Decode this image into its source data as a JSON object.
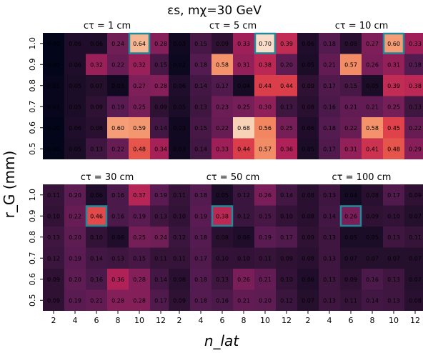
{
  "figure": {
    "title": "εs, mχ=30 GeV",
    "xlabel": "n_lat",
    "ylabel": "r_G (mm)"
  },
  "chart_data": [
    {
      "type": "heatmap",
      "title": "cτ = 1 cm",
      "x": [
        "2",
        "4",
        "6",
        "8",
        "10",
        "12"
      ],
      "y": [
        "1.0",
        "0.9",
        "0.8",
        "0.7",
        "0.6",
        "0.5"
      ],
      "values": [
        [
          0.0,
          0.06,
          0.06,
          0.24,
          0.64,
          0.28
        ],
        [
          0.0,
          0.06,
          0.32,
          0.22,
          0.32,
          0.15
        ],
        [
          0.01,
          0.05,
          0.07,
          0.03,
          0.27,
          0.28
        ],
        [
          0.01,
          0.05,
          0.09,
          0.19,
          0.25,
          0.09
        ],
        [
          0.0,
          0.06,
          0.08,
          0.6,
          0.59,
          0.14
        ],
        [
          0.0,
          0.05,
          0.13,
          0.22,
          0.48,
          0.34
        ]
      ],
      "highlight": [
        0,
        4
      ],
      "vmin": 0,
      "vmax": 0.72
    },
    {
      "type": "heatmap",
      "title": "cτ = 5 cm",
      "x": [
        "2",
        "4",
        "6",
        "8",
        "10",
        "12"
      ],
      "y": [
        "1.0",
        "0.9",
        "0.8",
        "0.7",
        "0.6",
        "0.5"
      ],
      "values": [
        [
          0.03,
          0.15,
          0.09,
          0.33,
          0.7,
          0.39
        ],
        [
          0.02,
          0.18,
          0.58,
          0.31,
          0.38,
          0.2
        ],
        [
          0.06,
          0.14,
          0.17,
          0.04,
          0.44,
          0.44
        ],
        [
          0.05,
          0.13,
          0.23,
          0.25,
          0.3,
          0.13
        ],
        [
          0.03,
          0.15,
          0.22,
          0.68,
          0.56,
          0.25
        ],
        [
          0.03,
          0.14,
          0.33,
          0.44,
          0.57,
          0.36
        ]
      ],
      "highlight": [
        0,
        4
      ],
      "vmin": 0,
      "vmax": 0.72
    },
    {
      "type": "heatmap",
      "title": "cτ = 10 cm",
      "x": [
        "2",
        "4",
        "6",
        "8",
        "10",
        "12"
      ],
      "y": [
        "1.0",
        "0.9",
        "0.8",
        "0.7",
        "0.6",
        "0.5"
      ],
      "values": [
        [
          0.06,
          0.18,
          0.08,
          0.27,
          0.6,
          0.33
        ],
        [
          0.05,
          0.21,
          0.57,
          0.26,
          0.31,
          0.18
        ],
        [
          0.09,
          0.17,
          0.15,
          0.05,
          0.39,
          0.38
        ],
        [
          0.08,
          0.16,
          0.21,
          0.21,
          0.25,
          0.13
        ],
        [
          0.06,
          0.18,
          0.22,
          0.58,
          0.45,
          0.22
        ],
        [
          0.05,
          0.17,
          0.31,
          0.41,
          0.48,
          0.29
        ]
      ],
      "highlight": [
        0,
        4
      ],
      "vmin": 0,
      "vmax": 0.72
    },
    {
      "type": "heatmap",
      "title": "cτ = 30 cm",
      "x": [
        "2",
        "4",
        "6",
        "8",
        "10",
        "12"
      ],
      "y": [
        "1.0",
        "0.9",
        "0.8",
        "0.7",
        "0.6",
        "0.5"
      ],
      "values": [
        [
          0.11,
          0.2,
          0.06,
          0.16,
          0.37,
          0.19
        ],
        [
          0.1,
          0.22,
          0.46,
          0.16,
          0.19,
          0.13
        ],
        [
          0.13,
          0.2,
          0.1,
          0.06,
          0.25,
          0.24
        ],
        [
          0.12,
          0.19,
          0.14,
          0.13,
          0.15,
          0.11
        ],
        [
          0.09,
          0.2,
          0.16,
          0.36,
          0.28,
          0.14
        ],
        [
          0.09,
          0.19,
          0.21,
          0.28,
          0.28,
          0.17
        ]
      ],
      "highlight": [
        1,
        2
      ],
      "vmin": 0,
      "vmax": 0.72
    },
    {
      "type": "heatmap",
      "title": "cτ = 50 cm",
      "x": [
        "2",
        "4",
        "6",
        "8",
        "10",
        "12"
      ],
      "y": [
        "1.0",
        "0.9",
        "0.8",
        "0.7",
        "0.6",
        "0.5"
      ],
      "values": [
        [
          0.11,
          0.18,
          0.05,
          0.12,
          0.26,
          0.14
        ],
        [
          0.1,
          0.19,
          0.38,
          0.12,
          0.15,
          0.1
        ],
        [
          0.12,
          0.18,
          0.08,
          0.06,
          0.19,
          0.17
        ],
        [
          0.11,
          0.17,
          0.1,
          0.1,
          0.11,
          0.09
        ],
        [
          0.08,
          0.18,
          0.13,
          0.26,
          0.21,
          0.1
        ],
        [
          0.09,
          0.18,
          0.16,
          0.21,
          0.2,
          0.12
        ]
      ],
      "highlight": [
        1,
        2
      ],
      "vmin": 0,
      "vmax": 0.72
    },
    {
      "type": "heatmap",
      "title": "cτ = 100 cm",
      "x": [
        "2",
        "4",
        "6",
        "8",
        "10",
        "12"
      ],
      "y": [
        "1.0",
        "0.9",
        "0.8",
        "0.7",
        "0.6",
        "0.5"
      ],
      "values": [
        [
          0.08,
          0.13,
          0.04,
          0.08,
          0.17,
          0.09
        ],
        [
          0.08,
          0.14,
          0.26,
          0.09,
          0.1,
          0.07
        ],
        [
          0.09,
          0.13,
          0.05,
          0.05,
          0.13,
          0.11
        ],
        [
          0.08,
          0.13,
          0.07,
          0.07,
          0.07,
          0.07
        ],
        [
          0.06,
          0.13,
          0.09,
          0.16,
          0.13,
          0.07
        ],
        [
          0.07,
          0.13,
          0.11,
          0.14,
          0.13,
          0.08
        ]
      ],
      "highlight": [
        1,
        2
      ],
      "vmin": 0,
      "vmax": 0.72
    }
  ]
}
